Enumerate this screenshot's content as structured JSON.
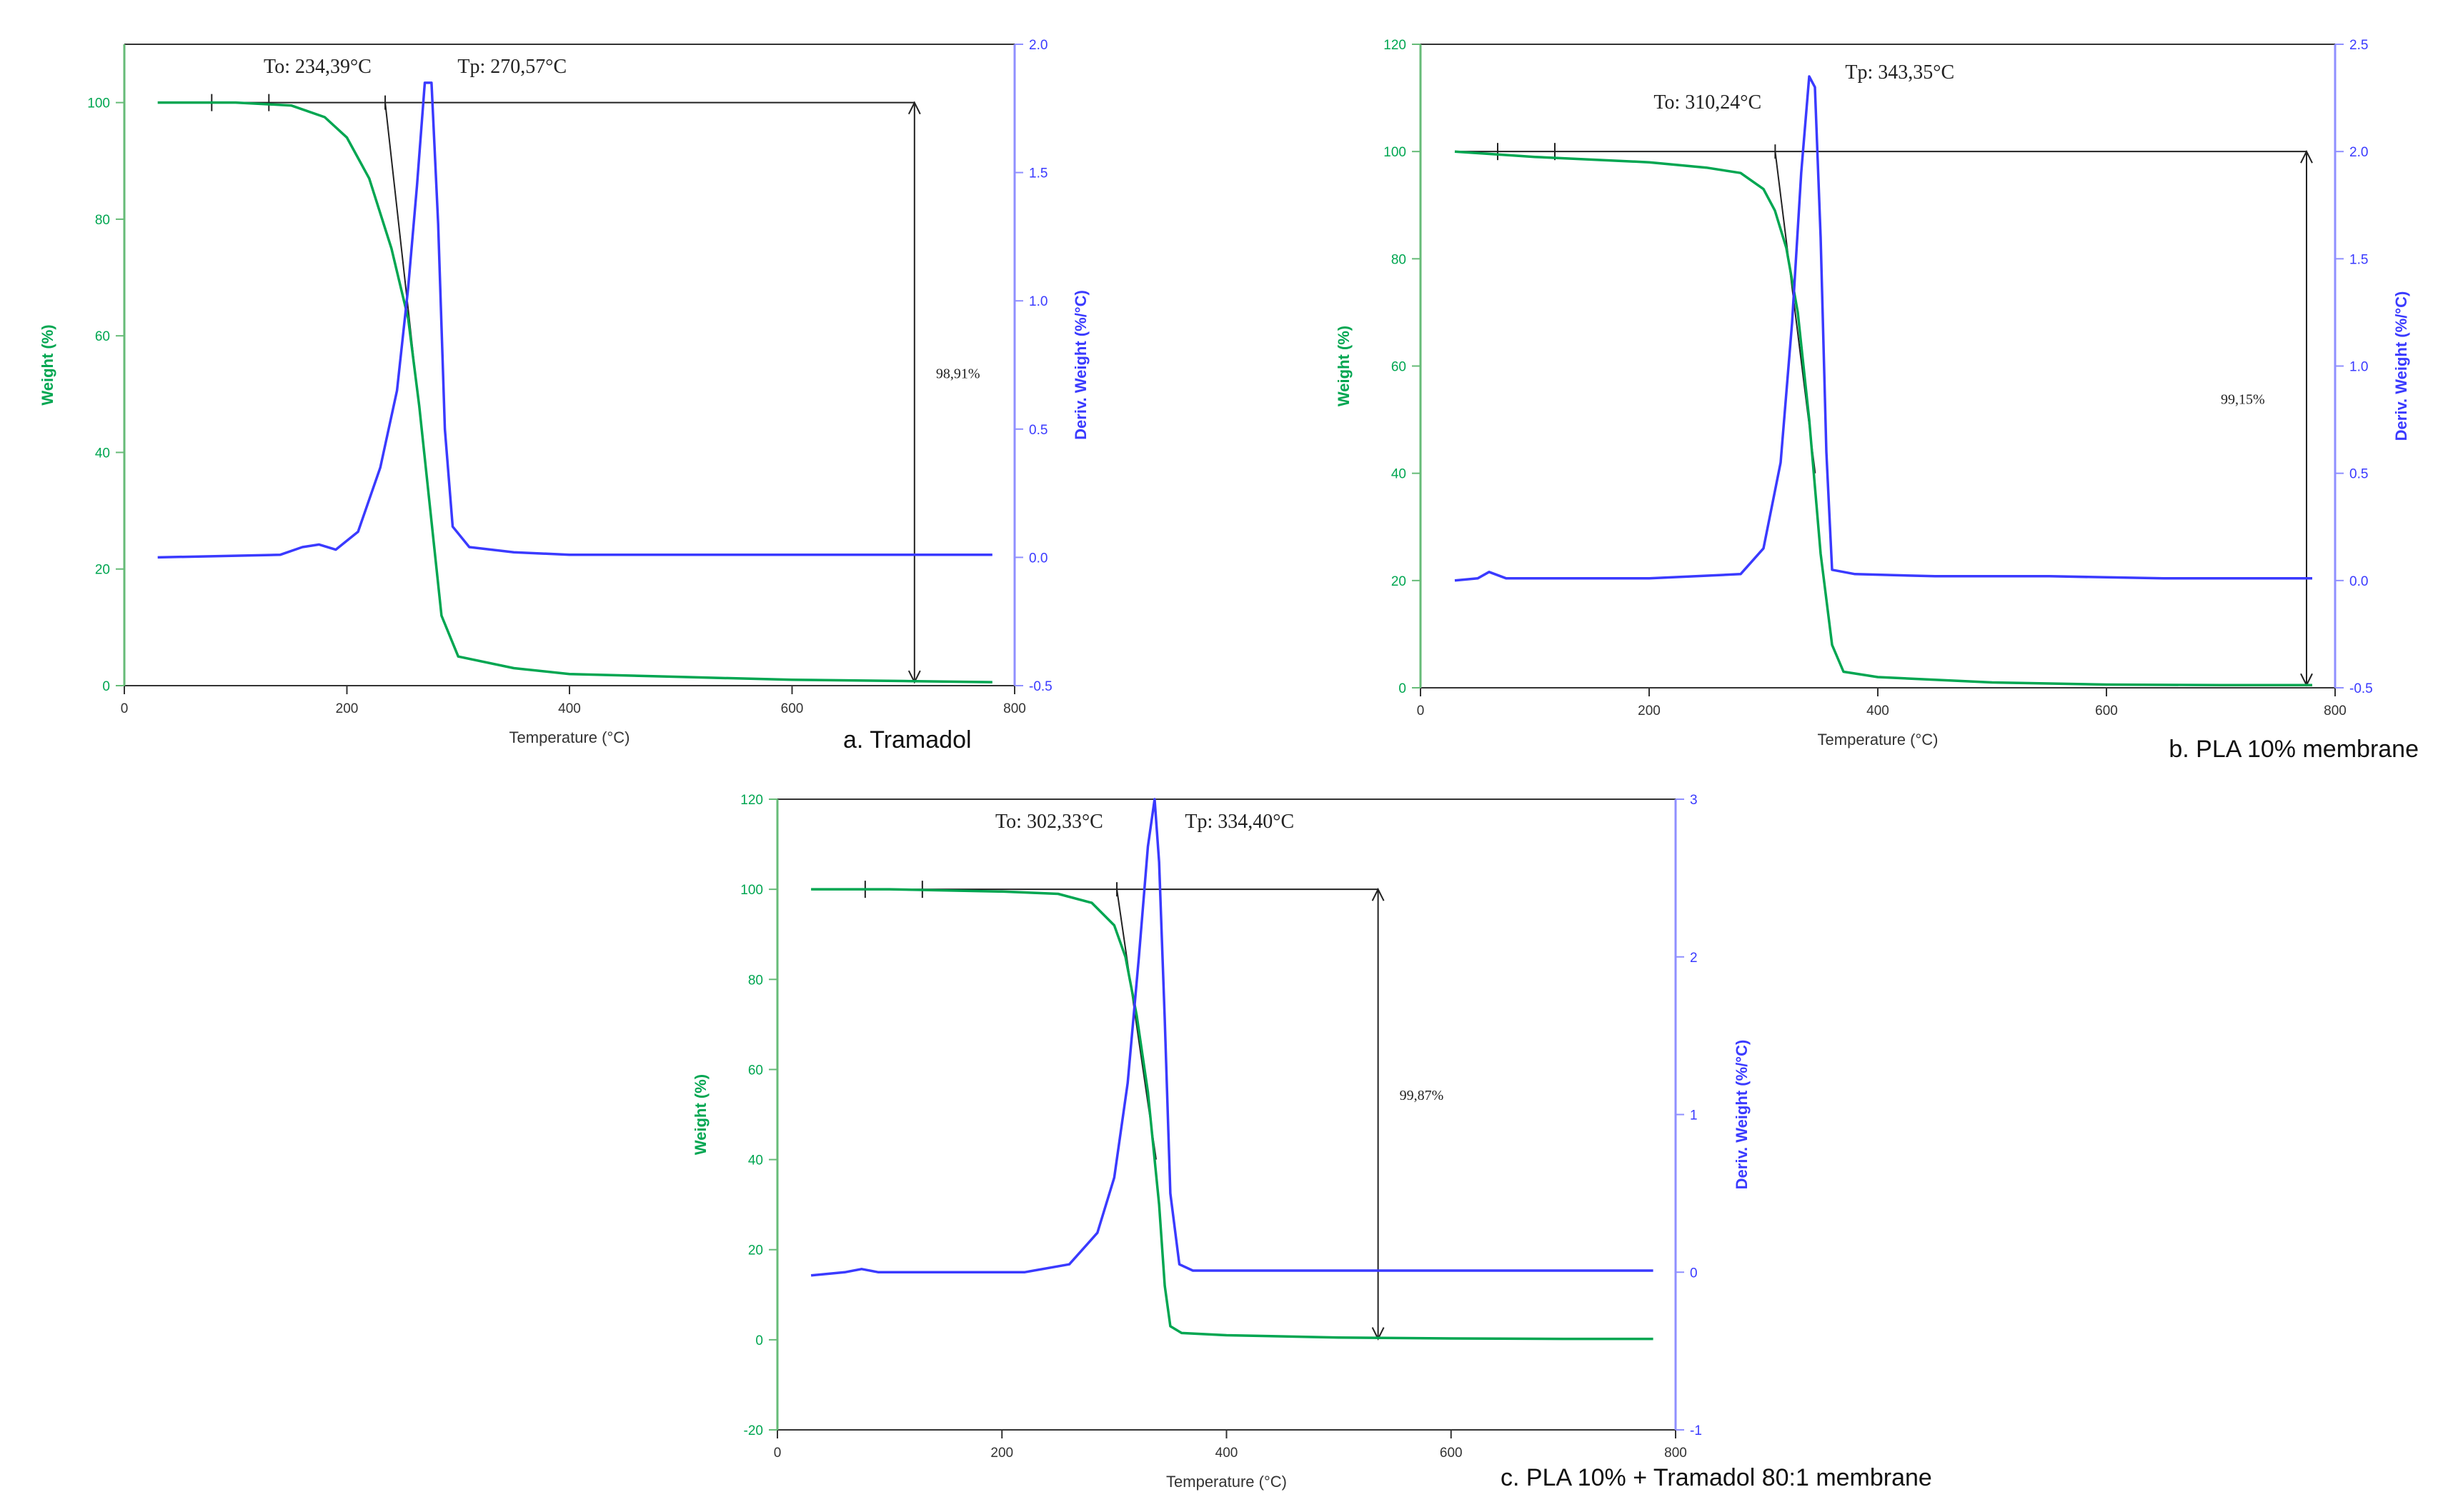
{
  "chart_data": [
    {
      "type": "line",
      "caption": "a. Tramadol",
      "xlabel": "Temperature (°C)",
      "ylabel": "Weight (%)",
      "y2label": "Deriv. Weight (%/°C)",
      "xlim": [
        0,
        800
      ],
      "ylim": [
        0,
        110
      ],
      "y2lim": [
        -0.5,
        2.0
      ],
      "xticks": [
        "0",
        "200",
        "400",
        "600",
        "800"
      ],
      "yticks": [
        "0",
        "20",
        "40",
        "60",
        "80",
        "100"
      ],
      "y2ticks": [
        "-0.5",
        "0.0",
        "0.5",
        "1.0",
        "1.5",
        "2.0"
      ],
      "series": [
        {
          "axis": "left",
          "color": "#00a651",
          "x": [
            30,
            100,
            150,
            180,
            200,
            220,
            240,
            255,
            265,
            275,
            285,
            300,
            350,
            400,
            500,
            600,
            700,
            780
          ],
          "y": [
            100,
            100,
            99.5,
            97.5,
            94,
            87,
            75,
            63,
            48,
            30,
            12,
            5,
            3,
            2,
            1.5,
            1,
            0.8,
            0.6
          ]
        },
        {
          "axis": "right",
          "color": "#3a3aff",
          "x": [
            30,
            140,
            160,
            175,
            190,
            210,
            230,
            245,
            255,
            263,
            270,
            276,
            282,
            288,
            295,
            310,
            350,
            400,
            500,
            600,
            780
          ],
          "y": [
            0,
            0.01,
            0.04,
            0.05,
            0.03,
            0.1,
            0.35,
            0.65,
            1.05,
            1.45,
            1.85,
            1.85,
            1.3,
            0.5,
            0.12,
            0.04,
            0.02,
            0.01,
            0.01,
            0.01,
            0.01
          ]
        }
      ],
      "annotations": {
        "onset_label": "To: 234,39°C",
        "onset_x": 234.39,
        "peak_label": "Tp: 270,57°C",
        "peak_x": 270.57,
        "loss_label": "98,91%",
        "loss_x": 710,
        "loss_top": 100,
        "loss_bottom": 0.6,
        "baseline_y": 100,
        "baseline_x": [
          40,
          710
        ]
      }
    },
    {
      "type": "line",
      "caption": "b. PLA 10% membrane",
      "xlabel": "Temperature (°C)",
      "ylabel": "Weight (%)",
      "y2label": "Deriv. Weight (%/°C)",
      "xlim": [
        0,
        800
      ],
      "ylim": [
        0,
        120
      ],
      "y2lim": [
        -0.5,
        2.5
      ],
      "xticks": [
        "0",
        "200",
        "400",
        "600",
        "800"
      ],
      "yticks": [
        "0",
        "20",
        "40",
        "60",
        "80",
        "100",
        "120"
      ],
      "y2ticks": [
        "-0.5",
        "0.0",
        "0.5",
        "1.0",
        "1.5",
        "2.0",
        "2.5"
      ],
      "series": [
        {
          "axis": "left",
          "color": "#00a651",
          "x": [
            30,
            100,
            200,
            250,
            280,
            300,
            310,
            320,
            330,
            340,
            350,
            360,
            370,
            400,
            500,
            600,
            700,
            780
          ],
          "y": [
            100,
            99,
            98,
            97,
            96,
            93,
            89,
            82,
            70,
            50,
            25,
            8,
            3,
            2,
            1,
            0.6,
            0.5,
            0.5
          ]
        },
        {
          "axis": "right",
          "color": "#3a3aff",
          "x": [
            30,
            50,
            60,
            75,
            100,
            200,
            280,
            300,
            315,
            325,
            333,
            340,
            345,
            350,
            355,
            360,
            380,
            450,
            550,
            650,
            780
          ],
          "y": [
            0,
            0.01,
            0.04,
            0.01,
            0.01,
            0.01,
            0.03,
            0.15,
            0.55,
            1.2,
            1.9,
            2.35,
            2.3,
            1.6,
            0.6,
            0.05,
            0.03,
            0.02,
            0.02,
            0.01,
            0.01
          ]
        }
      ],
      "annotations": {
        "onset_label": "To: 310,24°C",
        "onset_x": 310.24,
        "peak_label": "Tp: 343,35°C",
        "peak_x": 343.35,
        "loss_label": "99,15%",
        "loss_x": 775,
        "loss_top": 100,
        "loss_bottom": 0.5,
        "baseline_y": 100,
        "baseline_x": [
          30,
          775
        ]
      }
    },
    {
      "type": "line",
      "caption": "c. PLA 10% + Tramadol 80:1 membrane",
      "xlabel": "Temperature (°C)",
      "ylabel": "Weight (%)",
      "y2label": "Deriv. Weight (%/°C)",
      "xlim": [
        0,
        800
      ],
      "ylim": [
        -20,
        120
      ],
      "y2lim": [
        -1,
        3
      ],
      "xticks": [
        "0",
        "200",
        "400",
        "600",
        "800"
      ],
      "yticks": [
        "-20",
        "0",
        "20",
        "40",
        "60",
        "80",
        "100",
        "120"
      ],
      "y2ticks": [
        "-1",
        "0",
        "1",
        "2",
        "3"
      ],
      "series": [
        {
          "axis": "left",
          "color": "#00a651",
          "x": [
            30,
            100,
            200,
            250,
            280,
            300,
            310,
            320,
            330,
            340,
            345,
            350,
            360,
            400,
            500,
            600,
            700,
            780
          ],
          "y": [
            100,
            100,
            99.5,
            99,
            97,
            92,
            85,
            72,
            55,
            30,
            12,
            3,
            1.5,
            1,
            0.5,
            0.3,
            0.2,
            0.2
          ]
        },
        {
          "axis": "right",
          "color": "#3a3aff",
          "x": [
            30,
            60,
            75,
            90,
            150,
            220,
            260,
            285,
            300,
            312,
            322,
            330,
            336,
            340,
            345,
            350,
            358,
            370,
            450,
            600,
            780
          ],
          "y": [
            -0.02,
            0,
            0.02,
            0,
            0,
            0,
            0.05,
            0.25,
            0.6,
            1.2,
            2.0,
            2.7,
            3.0,
            2.6,
            1.6,
            0.5,
            0.05,
            0.01,
            0.01,
            0.01,
            0.01
          ]
        }
      ],
      "annotations": {
        "onset_label": "To: 302,33°C",
        "onset_x": 302.33,
        "peak_label": "Tp: 334,40°C",
        "peak_x": 334.4,
        "loss_label": "99,87%",
        "loss_x": 535,
        "loss_top": 100,
        "loss_bottom": 0.2,
        "baseline_y": 100,
        "baseline_x": [
          40,
          535
        ]
      }
    }
  ]
}
